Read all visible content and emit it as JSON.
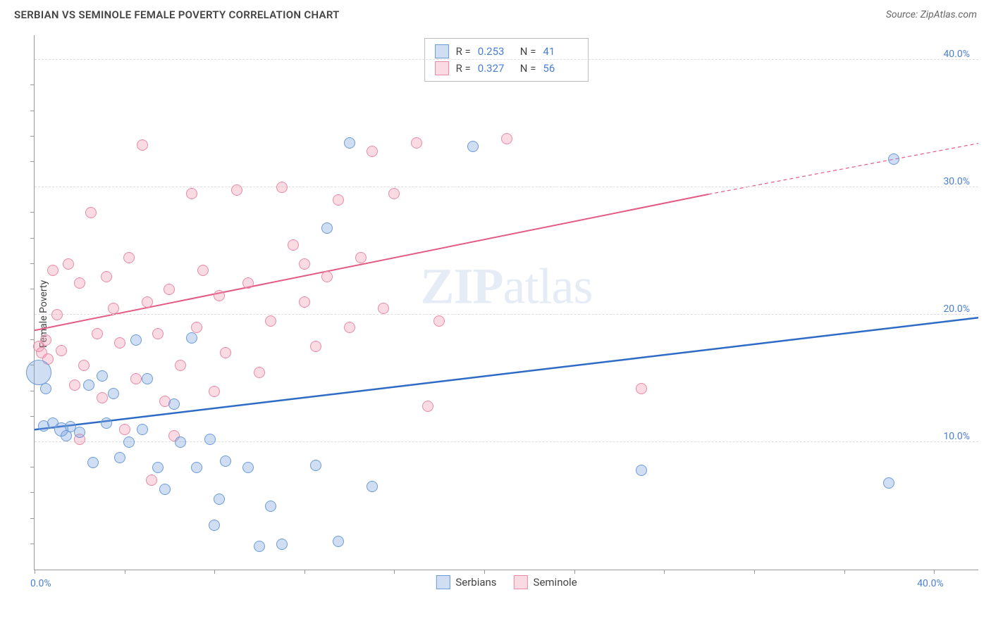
{
  "header": {
    "title": "SERBIAN VS SEMINOLE FEMALE POVERTY CORRELATION CHART",
    "source_prefix": "Source: ",
    "source_name": "ZipAtlas.com"
  },
  "watermark": {
    "zip": "ZIP",
    "atlas": "atlas"
  },
  "chart": {
    "type": "scatter",
    "ylabel": "Female Poverty",
    "xlim": [
      0,
      42
    ],
    "ylim": [
      0,
      42
    ],
    "x_ticks": [
      0,
      4,
      8,
      12,
      16,
      20,
      24,
      28,
      32,
      36,
      40
    ],
    "x_tick_labels": {
      "0": "0.0%",
      "40": "40.0%"
    },
    "y_gridlines": [
      10,
      20,
      30,
      40
    ],
    "y_tick_labels": {
      "10": "10.0%",
      "20": "20.0%",
      "30": "30.0%",
      "40": "40.0%"
    },
    "y_minor_ticks": [
      2,
      4,
      6,
      8,
      12,
      14,
      16,
      18,
      22,
      24,
      26,
      28,
      32,
      34,
      36,
      38
    ],
    "background_color": "#ffffff",
    "grid_color": "#dddddd",
    "axis_color": "#999999"
  },
  "series": {
    "serbians": {
      "label": "Serbians",
      "color_fill": "rgba(120,160,220,0.35)",
      "color_stroke": "#6a9bd8",
      "R": "0.253",
      "N": "41",
      "trend": {
        "x1": 0,
        "y1": 11,
        "x2": 42,
        "y2": 19.8,
        "color": "#2e6bc7",
        "width": 2.5
      },
      "points": [
        {
          "x": 0.2,
          "y": 15.5,
          "r": 18
        },
        {
          "x": 0.4,
          "y": 11.3,
          "r": 8
        },
        {
          "x": 0.5,
          "y": 14.2,
          "r": 8
        },
        {
          "x": 0.8,
          "y": 11.5,
          "r": 8
        },
        {
          "x": 1.2,
          "y": 11.0,
          "r": 10
        },
        {
          "x": 1.4,
          "y": 10.5,
          "r": 8
        },
        {
          "x": 1.6,
          "y": 11.2,
          "r": 8
        },
        {
          "x": 2.0,
          "y": 10.8,
          "r": 8
        },
        {
          "x": 2.4,
          "y": 14.5,
          "r": 8
        },
        {
          "x": 2.6,
          "y": 8.4,
          "r": 8
        },
        {
          "x": 3.0,
          "y": 15.2,
          "r": 8
        },
        {
          "x": 3.2,
          "y": 11.5,
          "r": 8
        },
        {
          "x": 3.5,
          "y": 13.8,
          "r": 8
        },
        {
          "x": 3.8,
          "y": 8.8,
          "r": 8
        },
        {
          "x": 4.2,
          "y": 10.0,
          "r": 8
        },
        {
          "x": 4.5,
          "y": 18.0,
          "r": 8
        },
        {
          "x": 4.8,
          "y": 11.0,
          "r": 8
        },
        {
          "x": 5.0,
          "y": 15.0,
          "r": 8
        },
        {
          "x": 5.5,
          "y": 8.0,
          "r": 8
        },
        {
          "x": 5.8,
          "y": 6.3,
          "r": 8
        },
        {
          "x": 6.2,
          "y": 13.0,
          "r": 8
        },
        {
          "x": 6.5,
          "y": 10.0,
          "r": 8
        },
        {
          "x": 7.0,
          "y": 18.2,
          "r": 8
        },
        {
          "x": 7.2,
          "y": 8.0,
          "r": 8
        },
        {
          "x": 7.8,
          "y": 10.2,
          "r": 8
        },
        {
          "x": 8.0,
          "y": 3.5,
          "r": 8
        },
        {
          "x": 8.2,
          "y": 5.5,
          "r": 8
        },
        {
          "x": 8.5,
          "y": 8.5,
          "r": 8
        },
        {
          "x": 9.5,
          "y": 8.0,
          "r": 8
        },
        {
          "x": 10.0,
          "y": 1.8,
          "r": 8
        },
        {
          "x": 10.5,
          "y": 5.0,
          "r": 8
        },
        {
          "x": 11.0,
          "y": 2.0,
          "r": 8
        },
        {
          "x": 12.5,
          "y": 8.2,
          "r": 8
        },
        {
          "x": 13.0,
          "y": 26.8,
          "r": 8
        },
        {
          "x": 13.5,
          "y": 2.2,
          "r": 8
        },
        {
          "x": 14.0,
          "y": 33.5,
          "r": 8
        },
        {
          "x": 15.0,
          "y": 6.5,
          "r": 8
        },
        {
          "x": 19.5,
          "y": 33.2,
          "r": 8
        },
        {
          "x": 27.0,
          "y": 7.8,
          "r": 8
        },
        {
          "x": 38.0,
          "y": 6.8,
          "r": 8
        },
        {
          "x": 38.2,
          "y": 32.2,
          "r": 8
        }
      ]
    },
    "seminole": {
      "label": "Seminole",
      "color_fill": "rgba(240,150,175,0.35)",
      "color_stroke": "#e88aa5",
      "R": "0.327",
      "N": "56",
      "trend": {
        "x1": 0,
        "y1": 18.8,
        "x2": 30,
        "y2": 29.5,
        "x3": 42,
        "y3": 33.5,
        "color": "#e35a82",
        "width": 2
      },
      "points": [
        {
          "x": 0.2,
          "y": 17.5,
          "r": 8
        },
        {
          "x": 0.3,
          "y": 17.0,
          "r": 8
        },
        {
          "x": 0.5,
          "y": 18.0,
          "r": 8
        },
        {
          "x": 0.6,
          "y": 16.5,
          "r": 8
        },
        {
          "x": 0.8,
          "y": 23.5,
          "r": 8
        },
        {
          "x": 1.0,
          "y": 20.0,
          "r": 8
        },
        {
          "x": 1.2,
          "y": 17.2,
          "r": 8
        },
        {
          "x": 1.5,
          "y": 24.0,
          "r": 8
        },
        {
          "x": 1.8,
          "y": 14.5,
          "r": 8
        },
        {
          "x": 2.0,
          "y": 22.5,
          "r": 8
        },
        {
          "x": 2.0,
          "y": 10.2,
          "r": 8
        },
        {
          "x": 2.2,
          "y": 16.0,
          "r": 8
        },
        {
          "x": 2.5,
          "y": 28.0,
          "r": 8
        },
        {
          "x": 2.8,
          "y": 18.5,
          "r": 8
        },
        {
          "x": 3.0,
          "y": 13.5,
          "r": 8
        },
        {
          "x": 3.2,
          "y": 23.0,
          "r": 8
        },
        {
          "x": 3.5,
          "y": 20.5,
          "r": 8
        },
        {
          "x": 3.8,
          "y": 17.8,
          "r": 8
        },
        {
          "x": 4.0,
          "y": 11.0,
          "r": 8
        },
        {
          "x": 4.2,
          "y": 24.5,
          "r": 8
        },
        {
          "x": 4.5,
          "y": 15.0,
          "r": 8
        },
        {
          "x": 4.8,
          "y": 33.3,
          "r": 8
        },
        {
          "x": 5.0,
          "y": 21.0,
          "r": 8
        },
        {
          "x": 5.2,
          "y": 7.0,
          "r": 8
        },
        {
          "x": 5.5,
          "y": 18.5,
          "r": 8
        },
        {
          "x": 5.8,
          "y": 13.2,
          "r": 8
        },
        {
          "x": 6.0,
          "y": 22.0,
          "r": 8
        },
        {
          "x": 6.2,
          "y": 10.5,
          "r": 8
        },
        {
          "x": 6.5,
          "y": 16.0,
          "r": 8
        },
        {
          "x": 7.0,
          "y": 29.5,
          "r": 8
        },
        {
          "x": 7.2,
          "y": 19.0,
          "r": 8
        },
        {
          "x": 7.5,
          "y": 23.5,
          "r": 8
        },
        {
          "x": 8.0,
          "y": 14.0,
          "r": 8
        },
        {
          "x": 8.2,
          "y": 21.5,
          "r": 8
        },
        {
          "x": 8.5,
          "y": 17.0,
          "r": 8
        },
        {
          "x": 9.0,
          "y": 29.8,
          "r": 8
        },
        {
          "x": 9.5,
          "y": 22.5,
          "r": 8
        },
        {
          "x": 10.0,
          "y": 15.5,
          "r": 8
        },
        {
          "x": 10.5,
          "y": 19.5,
          "r": 8
        },
        {
          "x": 11.0,
          "y": 30.0,
          "r": 8
        },
        {
          "x": 11.5,
          "y": 25.5,
          "r": 8
        },
        {
          "x": 12.0,
          "y": 24.0,
          "r": 8
        },
        {
          "x": 12.0,
          "y": 21.0,
          "r": 8
        },
        {
          "x": 12.5,
          "y": 17.5,
          "r": 8
        },
        {
          "x": 13.0,
          "y": 23.0,
          "r": 8
        },
        {
          "x": 13.5,
          "y": 29.0,
          "r": 8
        },
        {
          "x": 14.0,
          "y": 19.0,
          "r": 8
        },
        {
          "x": 14.5,
          "y": 24.5,
          "r": 8
        },
        {
          "x": 15.0,
          "y": 32.8,
          "r": 8
        },
        {
          "x": 15.5,
          "y": 20.5,
          "r": 8
        },
        {
          "x": 16.0,
          "y": 29.5,
          "r": 8
        },
        {
          "x": 17.0,
          "y": 33.5,
          "r": 8
        },
        {
          "x": 17.5,
          "y": 12.8,
          "r": 8
        },
        {
          "x": 18.0,
          "y": 19.5,
          "r": 8
        },
        {
          "x": 21.0,
          "y": 33.8,
          "r": 8
        },
        {
          "x": 27.0,
          "y": 14.2,
          "r": 8
        }
      ]
    }
  },
  "legend_box": {
    "r_label": "R =",
    "n_label": "N ="
  },
  "bottom_legend": {
    "items": [
      "serbians",
      "seminole"
    ]
  }
}
